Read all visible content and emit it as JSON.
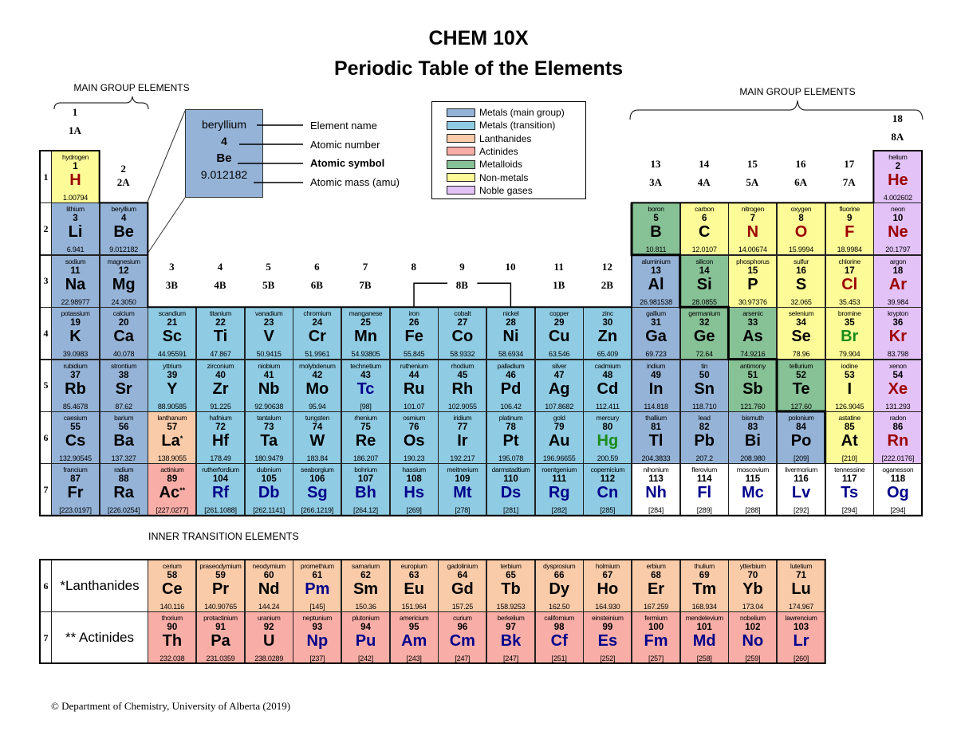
{
  "title": {
    "line1": "CHEM 10X",
    "line2": "Periodic Table of the Elements"
  },
  "main_group_label_left": "MAIN GROUP ELEMENTS",
  "main_group_label_right": "MAIN GROUP ELEMENTS",
  "inner_transition_label": "INNER TRANSITION ELEMENTS",
  "footer": "© Department of Chemistry, University of Alberta (2019)",
  "colors": {
    "metal_main": "#95b3d7",
    "metal_transition": "#8fcbe3",
    "lanthanide": "#f9cba9",
    "actinide": "#f8aea7",
    "metalloid": "#87c196",
    "nonmetal": "#fdfb98",
    "noble": "#e3c2f8",
    "unknown": "#ffffff",
    "gas_symbol": "#9b0000",
    "liquid_symbol": "#1a8c1a",
    "synthetic_symbol": "#00008b"
  },
  "legend": [
    {
      "label": "Metals (main group)",
      "cat": "m"
    },
    {
      "label": "Metals (transition)",
      "cat": "t"
    },
    {
      "label": "Lanthanides",
      "cat": "l"
    },
    {
      "label": "Actinides",
      "cat": "a"
    },
    {
      "label": "Metalloids",
      "cat": "md"
    },
    {
      "label": "Non-metals",
      "cat": "n"
    },
    {
      "label": "Noble gases",
      "cat": "g"
    }
  ],
  "key": {
    "name": "beryllium",
    "number": "4",
    "symbol": "Be",
    "mass": "9.012182",
    "labels": [
      "Element name",
      "Atomic number",
      "Atomic symbol",
      "Atomic mass (amu)"
    ]
  },
  "groups": [
    {
      "group": 1,
      "num": "1",
      "old": "1A"
    },
    {
      "group": 2,
      "num": "2",
      "old": "2A"
    },
    {
      "group": 3,
      "num": "3",
      "old": "3B"
    },
    {
      "group": 4,
      "num": "4",
      "old": "4B"
    },
    {
      "group": 5,
      "num": "5",
      "old": "5B"
    },
    {
      "group": 6,
      "num": "6",
      "old": "6B"
    },
    {
      "group": 7,
      "num": "7",
      "old": "7B"
    },
    {
      "group": 8,
      "num": "8",
      "old": ""
    },
    {
      "group": 9,
      "num": "9",
      "old": "8B"
    },
    {
      "group": 10,
      "num": "10",
      "old": ""
    },
    {
      "group": 11,
      "num": "11",
      "old": "1B"
    },
    {
      "group": 12,
      "num": "12",
      "old": "2B"
    },
    {
      "group": 13,
      "num": "13",
      "old": "3A"
    },
    {
      "group": 14,
      "num": "14",
      "old": "4A"
    },
    {
      "group": 15,
      "num": "15",
      "old": "5A"
    },
    {
      "group": 16,
      "num": "16",
      "old": "6A"
    },
    {
      "group": 17,
      "num": "17",
      "old": "7A"
    },
    {
      "group": 18,
      "num": "18",
      "old": "8A"
    }
  ],
  "periods": [
    "1",
    "2",
    "3",
    "4",
    "5",
    "6",
    "7"
  ],
  "elements": [
    [
      "hydrogen",
      "1",
      "H",
      "1.00794",
      "n",
      1,
      1,
      "gas"
    ],
    [
      "helium",
      "2",
      "He",
      "4.002602",
      "g",
      18,
      1,
      "gas"
    ],
    [
      "lithium",
      "3",
      "Li",
      "6.941",
      "m",
      1,
      2,
      ""
    ],
    [
      "beryllium",
      "4",
      "Be",
      "9.012182",
      "m",
      2,
      2,
      ""
    ],
    [
      "boron",
      "5",
      "B",
      "10.811",
      "md",
      13,
      2,
      ""
    ],
    [
      "carbon",
      "6",
      "C",
      "12.0107",
      "n",
      14,
      2,
      ""
    ],
    [
      "nitrogen",
      "7",
      "N",
      "14.00674",
      "n",
      15,
      2,
      "gas"
    ],
    [
      "oxygen",
      "8",
      "O",
      "15.9994",
      "n",
      16,
      2,
      "gas"
    ],
    [
      "fluorine",
      "9",
      "F",
      "18.9984",
      "n",
      17,
      2,
      "gas"
    ],
    [
      "neon",
      "10",
      "Ne",
      "20.1797",
      "g",
      18,
      2,
      "gas"
    ],
    [
      "sodium",
      "11",
      "Na",
      "22.98977",
      "m",
      1,
      3,
      ""
    ],
    [
      "magnesium",
      "12",
      "Mg",
      "24.3050",
      "m",
      2,
      3,
      ""
    ],
    [
      "aluminium",
      "13",
      "Al",
      "26.981538",
      "m",
      13,
      3,
      ""
    ],
    [
      "silicon",
      "14",
      "Si",
      "28.0855",
      "md",
      14,
      3,
      ""
    ],
    [
      "phosphorus",
      "15",
      "P",
      "30.97376",
      "n",
      15,
      3,
      ""
    ],
    [
      "sulfur",
      "16",
      "S",
      "32.065",
      "n",
      16,
      3,
      ""
    ],
    [
      "chlorine",
      "17",
      "Cl",
      "35.453",
      "n",
      17,
      3,
      "gas"
    ],
    [
      "argon",
      "18",
      "Ar",
      "39.984",
      "g",
      18,
      3,
      "gas"
    ],
    [
      "potassium",
      "19",
      "K",
      "39.0983",
      "m",
      1,
      4,
      ""
    ],
    [
      "calcium",
      "20",
      "Ca",
      "40.078",
      "m",
      2,
      4,
      ""
    ],
    [
      "scandium",
      "21",
      "Sc",
      "44.95591",
      "t",
      3,
      4,
      ""
    ],
    [
      "titanium",
      "22",
      "Ti",
      "47.867",
      "t",
      4,
      4,
      ""
    ],
    [
      "vanadium",
      "23",
      "V",
      "50.9415",
      "t",
      5,
      4,
      ""
    ],
    [
      "chromium",
      "24",
      "Cr",
      "51.9961",
      "t",
      6,
      4,
      ""
    ],
    [
      "manganese",
      "25",
      "Mn",
      "54.93805",
      "t",
      7,
      4,
      ""
    ],
    [
      "iron",
      "26",
      "Fe",
      "55.845",
      "t",
      8,
      4,
      ""
    ],
    [
      "cobalt",
      "27",
      "Co",
      "58.9332",
      "t",
      9,
      4,
      ""
    ],
    [
      "nickel",
      "28",
      "Ni",
      "58.6934",
      "t",
      10,
      4,
      ""
    ],
    [
      "copper",
      "29",
      "Cu",
      "63.546",
      "t",
      11,
      4,
      ""
    ],
    [
      "zinc",
      "30",
      "Zn",
      "65.409",
      "t",
      12,
      4,
      ""
    ],
    [
      "gallium",
      "31",
      "Ga",
      "69.723",
      "m",
      13,
      4,
      ""
    ],
    [
      "germanium",
      "32",
      "Ge",
      "72.64",
      "md",
      14,
      4,
      ""
    ],
    [
      "arsenic",
      "33",
      "As",
      "74.9216",
      "md",
      15,
      4,
      ""
    ],
    [
      "selenium",
      "34",
      "Se",
      "78.96",
      "n",
      16,
      4,
      ""
    ],
    [
      "bromine",
      "35",
      "Br",
      "79.904",
      "n",
      17,
      4,
      "liquid"
    ],
    [
      "krypton",
      "36",
      "Kr",
      "83.798",
      "g",
      18,
      4,
      "gas"
    ],
    [
      "rubidium",
      "37",
      "Rb",
      "85.4678",
      "m",
      1,
      5,
      ""
    ],
    [
      "strontium",
      "38",
      "Sr",
      "87.62",
      "m",
      2,
      5,
      ""
    ],
    [
      "yttrium",
      "39",
      "Y",
      "88.90585",
      "t",
      3,
      5,
      ""
    ],
    [
      "zirconium",
      "40",
      "Zr",
      "91.225",
      "t",
      4,
      5,
      ""
    ],
    [
      "niobium",
      "41",
      "Nb",
      "92.90638",
      "t",
      5,
      5,
      ""
    ],
    [
      "molybdenum",
      "42",
      "Mo",
      "95.94",
      "t",
      6,
      5,
      ""
    ],
    [
      "technetium",
      "43",
      "Tc",
      "[98]",
      "t",
      7,
      5,
      "synthetic"
    ],
    [
      "ruthenium",
      "44",
      "Ru",
      "101.07",
      "t",
      8,
      5,
      ""
    ],
    [
      "rhodium",
      "45",
      "Rh",
      "102.9055",
      "t",
      9,
      5,
      ""
    ],
    [
      "palladium",
      "46",
      "Pd",
      "106.42",
      "t",
      10,
      5,
      ""
    ],
    [
      "silver",
      "47",
      "Ag",
      "107.8682",
      "t",
      11,
      5,
      ""
    ],
    [
      "cadmium",
      "48",
      "Cd",
      "112.411",
      "t",
      12,
      5,
      ""
    ],
    [
      "indium",
      "49",
      "In",
      "114.818",
      "m",
      13,
      5,
      ""
    ],
    [
      "tin",
      "50",
      "Sn",
      "118.710",
      "m",
      14,
      5,
      ""
    ],
    [
      "antimony",
      "51",
      "Sb",
      "121.760",
      "md",
      15,
      5,
      ""
    ],
    [
      "tellurium",
      "52",
      "Te",
      "127.60",
      "md",
      16,
      5,
      ""
    ],
    [
      "iodine",
      "53",
      "I",
      "126.9045",
      "n",
      17,
      5,
      ""
    ],
    [
      "xenon",
      "54",
      "Xe",
      "131.293",
      "g",
      18,
      5,
      "gas"
    ],
    [
      "caesium",
      "55",
      "Cs",
      "132.90545",
      "m",
      1,
      6,
      ""
    ],
    [
      "barium",
      "56",
      "Ba",
      "137.327",
      "m",
      2,
      6,
      ""
    ],
    [
      "lanthanum",
      "57",
      "La",
      "138.9055",
      "l",
      3,
      6,
      "",
      "*"
    ],
    [
      "hafnium",
      "72",
      "Hf",
      "178.49",
      "t",
      4,
      6,
      ""
    ],
    [
      "tantalum",
      "73",
      "Ta",
      "180.9479",
      "t",
      5,
      6,
      ""
    ],
    [
      "tungsten",
      "74",
      "W",
      "183.84",
      "t",
      6,
      6,
      ""
    ],
    [
      "rhenium",
      "75",
      "Re",
      "186.207",
      "t",
      7,
      6,
      ""
    ],
    [
      "osmium",
      "76",
      "Os",
      "190.23",
      "t",
      8,
      6,
      ""
    ],
    [
      "iridium",
      "77",
      "Ir",
      "192.217",
      "t",
      9,
      6,
      ""
    ],
    [
      "platinum",
      "78",
      "Pt",
      "195.078",
      "t",
      10,
      6,
      ""
    ],
    [
      "gold",
      "79",
      "Au",
      "196.96655",
      "t",
      11,
      6,
      ""
    ],
    [
      "mercury",
      "80",
      "Hg",
      "200.59",
      "t",
      12,
      6,
      "liquid"
    ],
    [
      "thallium",
      "81",
      "Tl",
      "204.3833",
      "m",
      13,
      6,
      ""
    ],
    [
      "lead",
      "82",
      "Pb",
      "207.2",
      "m",
      14,
      6,
      ""
    ],
    [
      "bismuth",
      "83",
      "Bi",
      "208.980",
      "m",
      15,
      6,
      ""
    ],
    [
      "polonium",
      "84",
      "Po",
      "[209]",
      "m",
      16,
      6,
      ""
    ],
    [
      "astatine",
      "85",
      "At",
      "[210]",
      "n",
      17,
      6,
      ""
    ],
    [
      "radon",
      "86",
      "Rn",
      "[222.0176]",
      "g",
      18,
      6,
      "gas"
    ],
    [
      "francium",
      "87",
      "Fr",
      "[223.0197]",
      "m",
      1,
      7,
      ""
    ],
    [
      "radium",
      "88",
      "Ra",
      "[226.0254]",
      "m",
      2,
      7,
      ""
    ],
    [
      "actinium",
      "89",
      "Ac",
      "[227.0277]",
      "a",
      3,
      7,
      "",
      "**"
    ],
    [
      "rutherfordium",
      "104",
      "Rf",
      "[261.1088]",
      "t",
      4,
      7,
      "synthetic"
    ],
    [
      "dubnium",
      "105",
      "Db",
      "[262.1141]",
      "t",
      5,
      7,
      "synthetic"
    ],
    [
      "seaborgium",
      "106",
      "Sg",
      "[266.1219]",
      "t",
      6,
      7,
      "synthetic"
    ],
    [
      "bohrium",
      "107",
      "Bh",
      "[264.12]",
      "t",
      7,
      7,
      "synthetic"
    ],
    [
      "hassium",
      "108",
      "Hs",
      "[269]",
      "t",
      8,
      7,
      "synthetic"
    ],
    [
      "meitnerium",
      "109",
      "Mt",
      "[278]",
      "t",
      9,
      7,
      "synthetic"
    ],
    [
      "darmstadtium",
      "110",
      "Ds",
      "[281]",
      "t",
      10,
      7,
      "synthetic"
    ],
    [
      "roentgenium",
      "111",
      "Rg",
      "[282]",
      "t",
      11,
      7,
      "synthetic"
    ],
    [
      "copernicium",
      "112",
      "Cn",
      "[285]",
      "t",
      12,
      7,
      "synthetic"
    ],
    [
      "nihonium",
      "113",
      "Nh",
      "[284]",
      "u",
      13,
      7,
      "synthetic"
    ],
    [
      "flerovium",
      "114",
      "Fl",
      "[289]",
      "u",
      14,
      7,
      "synthetic"
    ],
    [
      "moscovium",
      "115",
      "Mc",
      "[288]",
      "u",
      15,
      7,
      "synthetic"
    ],
    [
      "livermorium",
      "116",
      "Lv",
      "[292]",
      "u",
      16,
      7,
      "synthetic"
    ],
    [
      "tennessine",
      "117",
      "Ts",
      "[294]",
      "u",
      17,
      7,
      "synthetic"
    ],
    [
      "oganesson",
      "118",
      "Og",
      "[294]",
      "u",
      18,
      7,
      "synthetic"
    ]
  ],
  "inner": {
    "lanthanides": {
      "period": "6",
      "label": "*Lanthanides",
      "elements": [
        [
          "cerium",
          "58",
          "Ce",
          "140.116",
          ""
        ],
        [
          "praseodymium",
          "59",
          "Pr",
          "140.90765",
          ""
        ],
        [
          "neodymium",
          "60",
          "Nd",
          "144.24",
          ""
        ],
        [
          "promethium",
          "61",
          "Pm",
          "[145]",
          "synthetic"
        ],
        [
          "samarium",
          "62",
          "Sm",
          "150.36",
          ""
        ],
        [
          "europium",
          "63",
          "Eu",
          "151.964",
          ""
        ],
        [
          "gadolinium",
          "64",
          "Gd",
          "157.25",
          ""
        ],
        [
          "terbium",
          "65",
          "Tb",
          "158.9253",
          ""
        ],
        [
          "dysprosium",
          "66",
          "Dy",
          "162.50",
          ""
        ],
        [
          "holmium",
          "67",
          "Ho",
          "164.930",
          ""
        ],
        [
          "erbium",
          "68",
          "Er",
          "167.259",
          ""
        ],
        [
          "thulium",
          "69",
          "Tm",
          "168.934",
          ""
        ],
        [
          "ytterbium",
          "70",
          "Yb",
          "173.04",
          ""
        ],
        [
          "lutetium",
          "71",
          "Lu",
          "174.967",
          ""
        ]
      ]
    },
    "actinides": {
      "period": "7",
      "label": "** Actinides",
      "elements": [
        [
          "thorium",
          "90",
          "Th",
          "232.038",
          ""
        ],
        [
          "protactinium",
          "91",
          "Pa",
          "231.0359",
          ""
        ],
        [
          "uranium",
          "92",
          "U",
          "238.0289",
          ""
        ],
        [
          "neptunium",
          "93",
          "Np",
          "[237]",
          "synthetic"
        ],
        [
          "plutonium",
          "94",
          "Pu",
          "[242]",
          "synthetic"
        ],
        [
          "americium",
          "95",
          "Am",
          "[243]",
          "synthetic"
        ],
        [
          "curium",
          "96",
          "Cm",
          "[247]",
          "synthetic"
        ],
        [
          "berkelium",
          "97",
          "Bk",
          "[247]",
          "synthetic"
        ],
        [
          "californium",
          "98",
          "Cf",
          "[251]",
          "synthetic"
        ],
        [
          "einsteinium",
          "99",
          "Es",
          "[252]",
          "synthetic"
        ],
        [
          "fermium",
          "100",
          "Fm",
          "[257]",
          "synthetic"
        ],
        [
          "mendelevium",
          "101",
          "Md",
          "[258]",
          "synthetic"
        ],
        [
          "nobelium",
          "102",
          "No",
          "[259]",
          "synthetic"
        ],
        [
          "lawrencium",
          "103",
          "Lr",
          "[260]",
          "synthetic"
        ]
      ]
    }
  }
}
